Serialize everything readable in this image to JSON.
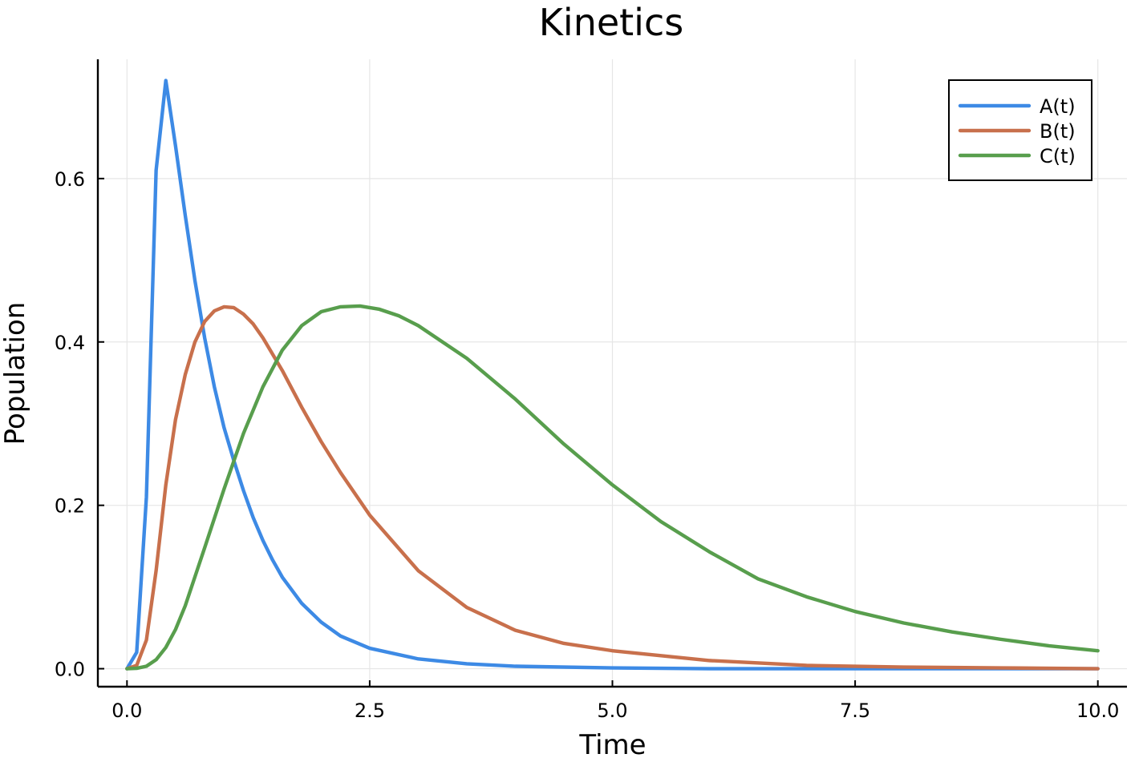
{
  "chart_data": {
    "type": "line",
    "title": "Kinetics",
    "xlabel": "Time",
    "ylabel": "Population",
    "xlim": [
      -0.3,
      10.3
    ],
    "ylim": [
      -0.022,
      0.746
    ],
    "xticks": [
      0,
      2.5,
      5,
      7.5,
      10
    ],
    "xtick_labels": [
      "0.0",
      "2.5",
      "5.0",
      "7.5",
      "10.0"
    ],
    "yticks": [
      0,
      0.2,
      0.4,
      0.6
    ],
    "ytick_labels": [
      "0.0",
      "0.2",
      "0.4",
      "0.6"
    ],
    "grid": true,
    "legend_position": "top-right",
    "series": [
      {
        "name": "A(t)",
        "color": "#3d8ae5",
        "x": [
          0,
          0.1,
          0.2,
          0.3,
          0.4,
          0.5,
          0.6,
          0.7,
          0.8,
          0.9,
          1.0,
          1.1,
          1.2,
          1.3,
          1.4,
          1.5,
          1.6,
          1.8,
          2.0,
          2.2,
          2.5,
          3.0,
          3.5,
          4.0,
          5.0,
          6.0,
          7.0,
          8.0,
          9.0,
          10.0
        ],
        "y": [
          0,
          0.02,
          0.21,
          0.61,
          0.72,
          0.64,
          0.555,
          0.475,
          0.405,
          0.345,
          0.295,
          0.255,
          0.218,
          0.185,
          0.157,
          0.133,
          0.112,
          0.08,
          0.057,
          0.04,
          0.025,
          0.012,
          0.006,
          0.003,
          0.001,
          0.0,
          0.0,
          0.0,
          0.0,
          0.0
        ]
      },
      {
        "name": "B(t)",
        "color": "#c8704c",
        "x": [
          0,
          0.1,
          0.2,
          0.3,
          0.4,
          0.5,
          0.6,
          0.7,
          0.8,
          0.9,
          1.0,
          1.1,
          1.2,
          1.3,
          1.4,
          1.6,
          1.8,
          2.0,
          2.2,
          2.5,
          3.0,
          3.5,
          4.0,
          4.5,
          5.0,
          6.0,
          7.0,
          8.0,
          9.0,
          10.0
        ],
        "y": [
          0,
          0.004,
          0.035,
          0.12,
          0.225,
          0.305,
          0.36,
          0.4,
          0.425,
          0.438,
          0.443,
          0.442,
          0.434,
          0.422,
          0.405,
          0.365,
          0.32,
          0.278,
          0.24,
          0.188,
          0.12,
          0.075,
          0.047,
          0.031,
          0.022,
          0.01,
          0.004,
          0.002,
          0.001,
          0.0
        ]
      },
      {
        "name": "C(t)",
        "color": "#589e4d",
        "x": [
          0,
          0.1,
          0.2,
          0.3,
          0.4,
          0.5,
          0.6,
          0.8,
          1.0,
          1.2,
          1.4,
          1.6,
          1.8,
          2.0,
          2.2,
          2.4,
          2.6,
          2.8,
          3.0,
          3.5,
          4.0,
          4.5,
          5.0,
          5.5,
          6.0,
          6.5,
          7.0,
          7.5,
          8.0,
          8.5,
          9.0,
          9.5,
          10.0
        ],
        "y": [
          0,
          0.0005,
          0.003,
          0.011,
          0.026,
          0.048,
          0.077,
          0.148,
          0.22,
          0.288,
          0.345,
          0.39,
          0.42,
          0.437,
          0.443,
          0.444,
          0.44,
          0.432,
          0.42,
          0.38,
          0.33,
          0.275,
          0.225,
          0.18,
          0.143,
          0.11,
          0.088,
          0.07,
          0.056,
          0.045,
          0.036,
          0.028,
          0.022
        ]
      }
    ]
  }
}
